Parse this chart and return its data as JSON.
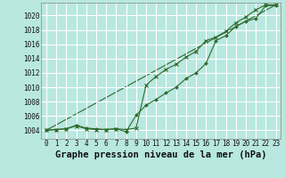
{
  "title": "Graphe pression niveau de la mer (hPa)",
  "background_color": "#b8e8e0",
  "grid_color": "#ffffff",
  "line_color": "#2d6a2d",
  "x_ticks": [
    0,
    1,
    2,
    3,
    4,
    5,
    6,
    7,
    8,
    9,
    10,
    11,
    12,
    13,
    14,
    15,
    16,
    17,
    18,
    19,
    20,
    21,
    22,
    23
  ],
  "y_ticks": [
    1004,
    1006,
    1008,
    1010,
    1012,
    1014,
    1016,
    1018,
    1020
  ],
  "ylim": [
    1002.8,
    1021.8
  ],
  "xlim": [
    -0.5,
    23.5
  ],
  "series1_x": [
    0,
    1,
    2,
    3,
    4,
    5,
    6,
    7,
    8,
    9,
    10,
    11,
    12,
    13,
    14,
    15,
    16,
    17,
    18,
    19,
    20,
    21,
    22,
    23
  ],
  "series1_y": [
    1004.0,
    1004.1,
    1004.2,
    1004.7,
    1004.3,
    1004.2,
    1004.1,
    1004.2,
    1003.8,
    1006.1,
    1007.5,
    1008.3,
    1009.2,
    1010.0,
    1011.2,
    1012.0,
    1013.3,
    1016.5,
    1017.2,
    1018.5,
    1019.2,
    1019.6,
    1021.4,
    1021.4
  ],
  "series2_x": [
    0,
    1,
    2,
    3,
    4,
    5,
    6,
    7,
    8,
    9,
    10,
    11,
    12,
    13,
    14,
    15,
    16,
    17,
    18,
    19,
    20,
    21,
    22,
    23
  ],
  "series2_y": [
    1004.0,
    1004.1,
    1004.2,
    1004.6,
    1004.2,
    1004.1,
    1004.1,
    1004.2,
    1004.1,
    1004.3,
    1010.3,
    1011.5,
    1012.5,
    1013.2,
    1014.2,
    1015.0,
    1016.5,
    1017.0,
    1017.8,
    1019.0,
    1019.8,
    1020.8,
    1021.5,
    1021.5
  ],
  "trend_x": [
    0,
    23
  ],
  "trend_y": [
    1004.0,
    1021.5
  ],
  "tick_fontsize": 5.5,
  "xlabel_fontsize": 7.5
}
